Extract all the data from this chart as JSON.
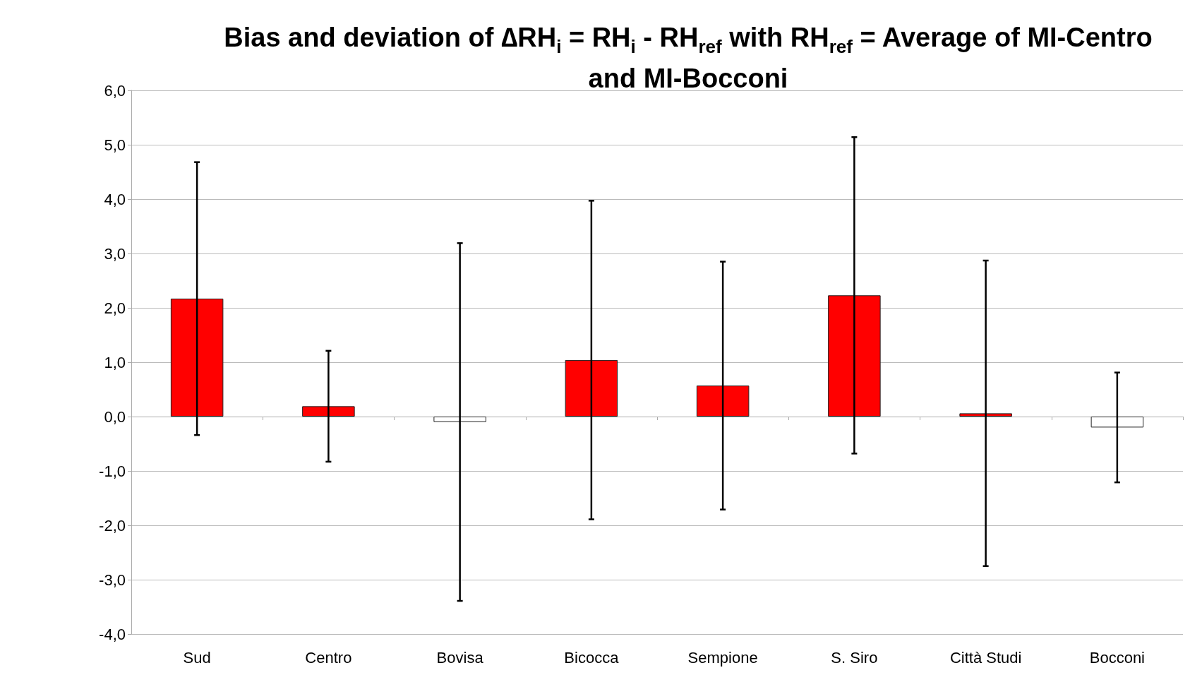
{
  "chart_data": {
    "type": "bar",
    "title": "Bias and deviation of ∆RH$_{i}$ = RH$_{i}$ - RH$_{ref}$  with RH$_{ref}$ = Average of MI-Centro and MI-Bocconi",
    "categories": [
      "Sud",
      "Centro",
      "Bovisa",
      "Bicocca",
      "Sempione",
      "S. Siro",
      "Città Studi",
      "Bocconi"
    ],
    "values": [
      2.17,
      0.19,
      -0.1,
      1.04,
      0.57,
      2.23,
      0.06,
      -0.2
    ],
    "errors": [
      2.51,
      1.02,
      3.29,
      2.93,
      2.28,
      2.91,
      2.81,
      1.01
    ],
    "colors": [
      "#ff0000",
      "#ff0000",
      "#ffffff",
      "#ff0000",
      "#ff0000",
      "#ff0000",
      "#ff0000",
      "#ffffff"
    ],
    "ylim": [
      -4,
      6
    ],
    "yticks": [
      {
        "value": -4,
        "label": "-4,0"
      },
      {
        "value": -3,
        "label": "-3,0"
      },
      {
        "value": -2,
        "label": "-2,0"
      },
      {
        "value": -1,
        "label": "-1,0"
      },
      {
        "value": 0,
        "label": "0,0"
      },
      {
        "value": 1,
        "label": "1,0"
      },
      {
        "value": 2,
        "label": "2,0"
      },
      {
        "value": 3,
        "label": "3,0"
      },
      {
        "value": 4,
        "label": "4,0"
      },
      {
        "value": 5,
        "label": "5,0"
      },
      {
        "value": 6,
        "label": "6,0"
      }
    ],
    "grid": "y"
  }
}
